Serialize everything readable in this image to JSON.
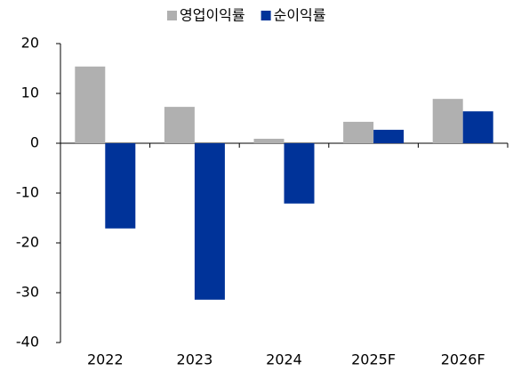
{
  "chart_data": {
    "type": "bar",
    "categories": [
      "2022",
      "2023",
      "2024",
      "2025F",
      "2026F"
    ],
    "series": [
      {
        "name": "영업이익률",
        "color": "#b0b0b0",
        "values": [
          15.4,
          7.3,
          0.9,
          4.3,
          8.9
        ]
      },
      {
        "name": "순이익률",
        "color": "#003399",
        "values": [
          -17.1,
          -31.4,
          -12.1,
          2.7,
          6.4
        ]
      }
    ],
    "ylim": [
      -40,
      20
    ],
    "yticks": [
      -40,
      -30,
      -20,
      -10,
      0,
      10,
      20
    ],
    "grid": false,
    "legend": "top"
  }
}
